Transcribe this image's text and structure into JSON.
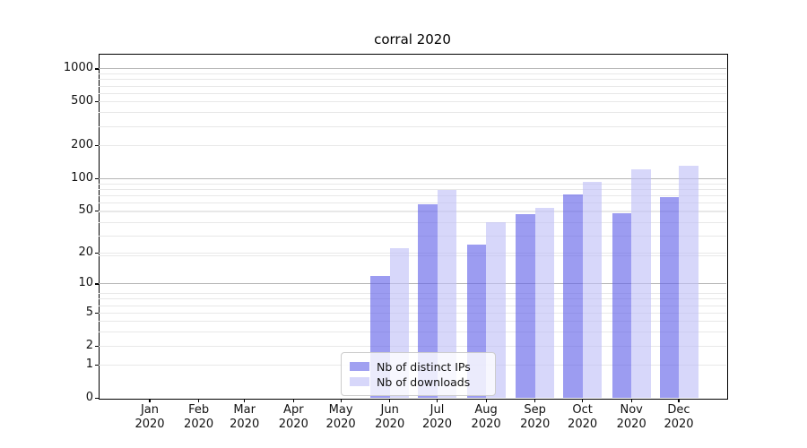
{
  "title": "corral 2020",
  "colors": {
    "bar_ips": "rgba(96,96,232,0.62)",
    "bar_downloads": "rgba(190,190,247,0.62)",
    "legend_swatch_ips": "#a1a1f1",
    "legend_swatch_downloads": "#d7d7fa",
    "grid_major": "#b5b5b5",
    "grid_minor": "#e8e8e8",
    "axis_line": "#000000",
    "text": "#111111"
  },
  "legend": {
    "items": [
      {
        "label": "Nb of distinct IPs"
      },
      {
        "label": "Nb of downloads"
      }
    ]
  },
  "chart_data": {
    "type": "bar",
    "title": "corral 2020",
    "categories": [
      "Jan 2020",
      "Feb 2020",
      "Mar 2020",
      "Apr 2020",
      "May 2020",
      "Jun 2020",
      "Jul 2020",
      "Aug 2020",
      "Sep 2020",
      "Oct 2020",
      "Nov 2020",
      "Dec 2020"
    ],
    "series": [
      {
        "name": "Nb of distinct IPs",
        "values": [
          0,
          0,
          0,
          0,
          0,
          12,
          57,
          24,
          46,
          71,
          47,
          67
        ]
      },
      {
        "name": "Nb of downloads",
        "values": [
          0,
          0,
          0,
          0,
          0,
          22,
          77,
          39,
          53,
          91,
          120,
          130
        ]
      }
    ],
    "y_ticks": [
      0,
      1,
      2,
      5,
      10,
      20,
      50,
      100,
      200,
      500,
      1000
    ],
    "y_scale": "log10(value+1)",
    "ylim": [
      0,
      1360
    ],
    "xlabel": "",
    "ylabel": "",
    "grid": true,
    "legend_position": "lower center"
  }
}
